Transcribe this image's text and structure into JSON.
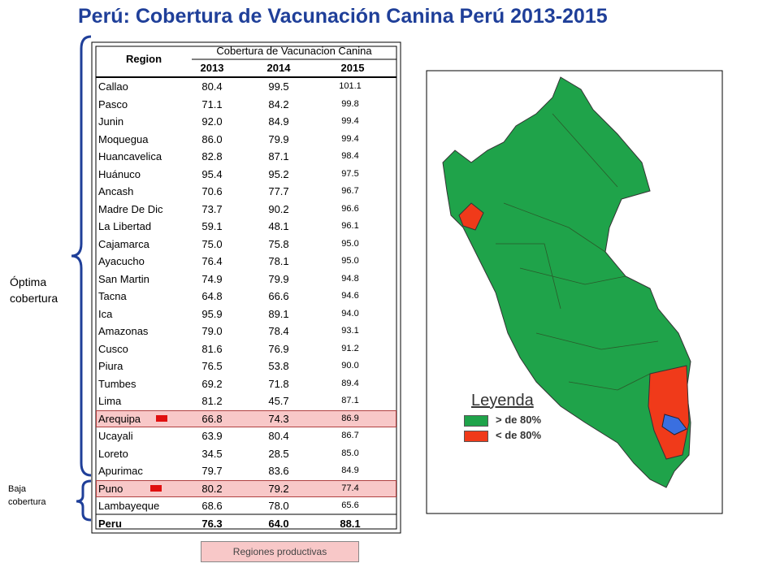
{
  "title": "Perú: Cobertura de Vacunación Canina Perú 2013-2015",
  "table": {
    "region_header": "Region",
    "group_header": "Cobertura de Vacunacion Canina",
    "years": [
      "2013",
      "2014",
      "2015"
    ],
    "rows": [
      {
        "region": "Callao",
        "values": [
          "80.4",
          "99.5",
          "101.1"
        ]
      },
      {
        "region": "Pasco",
        "values": [
          "71.1",
          "84.2",
          "99.8"
        ]
      },
      {
        "region": "Junin",
        "values": [
          "92.0",
          "84.9",
          "99.4"
        ]
      },
      {
        "region": "Moquegua",
        "values": [
          "86.0",
          "79.9",
          "99.4"
        ]
      },
      {
        "region": "Huancavelica",
        "values": [
          "82.8",
          "87.1",
          "98.4"
        ]
      },
      {
        "region": "Huánuco",
        "values": [
          "95.4",
          "95.2",
          "97.5"
        ]
      },
      {
        "region": "Ancash",
        "values": [
          "70.6",
          "77.7",
          "96.7"
        ]
      },
      {
        "region": "Madre De Dic",
        "values": [
          "73.7",
          "90.2",
          "96.6"
        ]
      },
      {
        "region": "La Libertad",
        "values": [
          "59.1",
          "48.1",
          "96.1"
        ]
      },
      {
        "region": "Cajamarca",
        "values": [
          "75.0",
          "75.8",
          "95.0"
        ]
      },
      {
        "region": "Ayacucho",
        "values": [
          "76.4",
          "78.1",
          "95.0"
        ]
      },
      {
        "region": "San Martin",
        "values": [
          "74.9",
          "79.9",
          "94.8"
        ]
      },
      {
        "region": "Tacna",
        "values": [
          "64.8",
          "66.6",
          "94.6"
        ]
      },
      {
        "region": "Ica",
        "values": [
          "95.9",
          "89.1",
          "94.0"
        ]
      },
      {
        "region": "Amazonas",
        "values": [
          "79.0",
          "78.4",
          "93.1"
        ]
      },
      {
        "region": "Cusco",
        "values": [
          "81.6",
          "76.9",
          "91.2"
        ]
      },
      {
        "region": "Piura",
        "values": [
          "76.5",
          "53.8",
          "90.0"
        ]
      },
      {
        "region": "Tumbes",
        "values": [
          "69.2",
          "71.8",
          "89.4"
        ]
      },
      {
        "region": "Lima",
        "values": [
          "81.2",
          "45.7",
          "87.1"
        ]
      },
      {
        "region": "Arequipa",
        "values": [
          "66.8",
          "74.3",
          "86.9"
        ],
        "highlight": true
      },
      {
        "region": "Ucayali",
        "values": [
          "63.9",
          "80.4",
          "86.7"
        ]
      },
      {
        "region": "Loreto",
        "values": [
          "34.5",
          "28.5",
          "85.0"
        ]
      },
      {
        "region": "Apurimac",
        "values": [
          "79.7",
          "83.6",
          "84.9"
        ]
      },
      {
        "region": "Puno",
        "values": [
          "80.2",
          "79.2",
          "77.4"
        ],
        "highlight": true
      },
      {
        "region": "Lambayeque",
        "values": [
          "68.6",
          "78.0",
          "65.6"
        ]
      }
    ],
    "total": {
      "region": "Peru",
      "values": [
        "76.3",
        "64.0",
        "88.1"
      ]
    }
  },
  "groups": {
    "optimal": "Óptima cobertura",
    "low": "Baja cobertura"
  },
  "footer": "Regiones productivas",
  "legend": {
    "title": "Leyenda",
    "items": [
      {
        "label": "> de 80%",
        "color": "#1fa34a"
      },
      {
        "label": "< de 80%",
        "color": "#f03a1a"
      }
    ]
  }
}
